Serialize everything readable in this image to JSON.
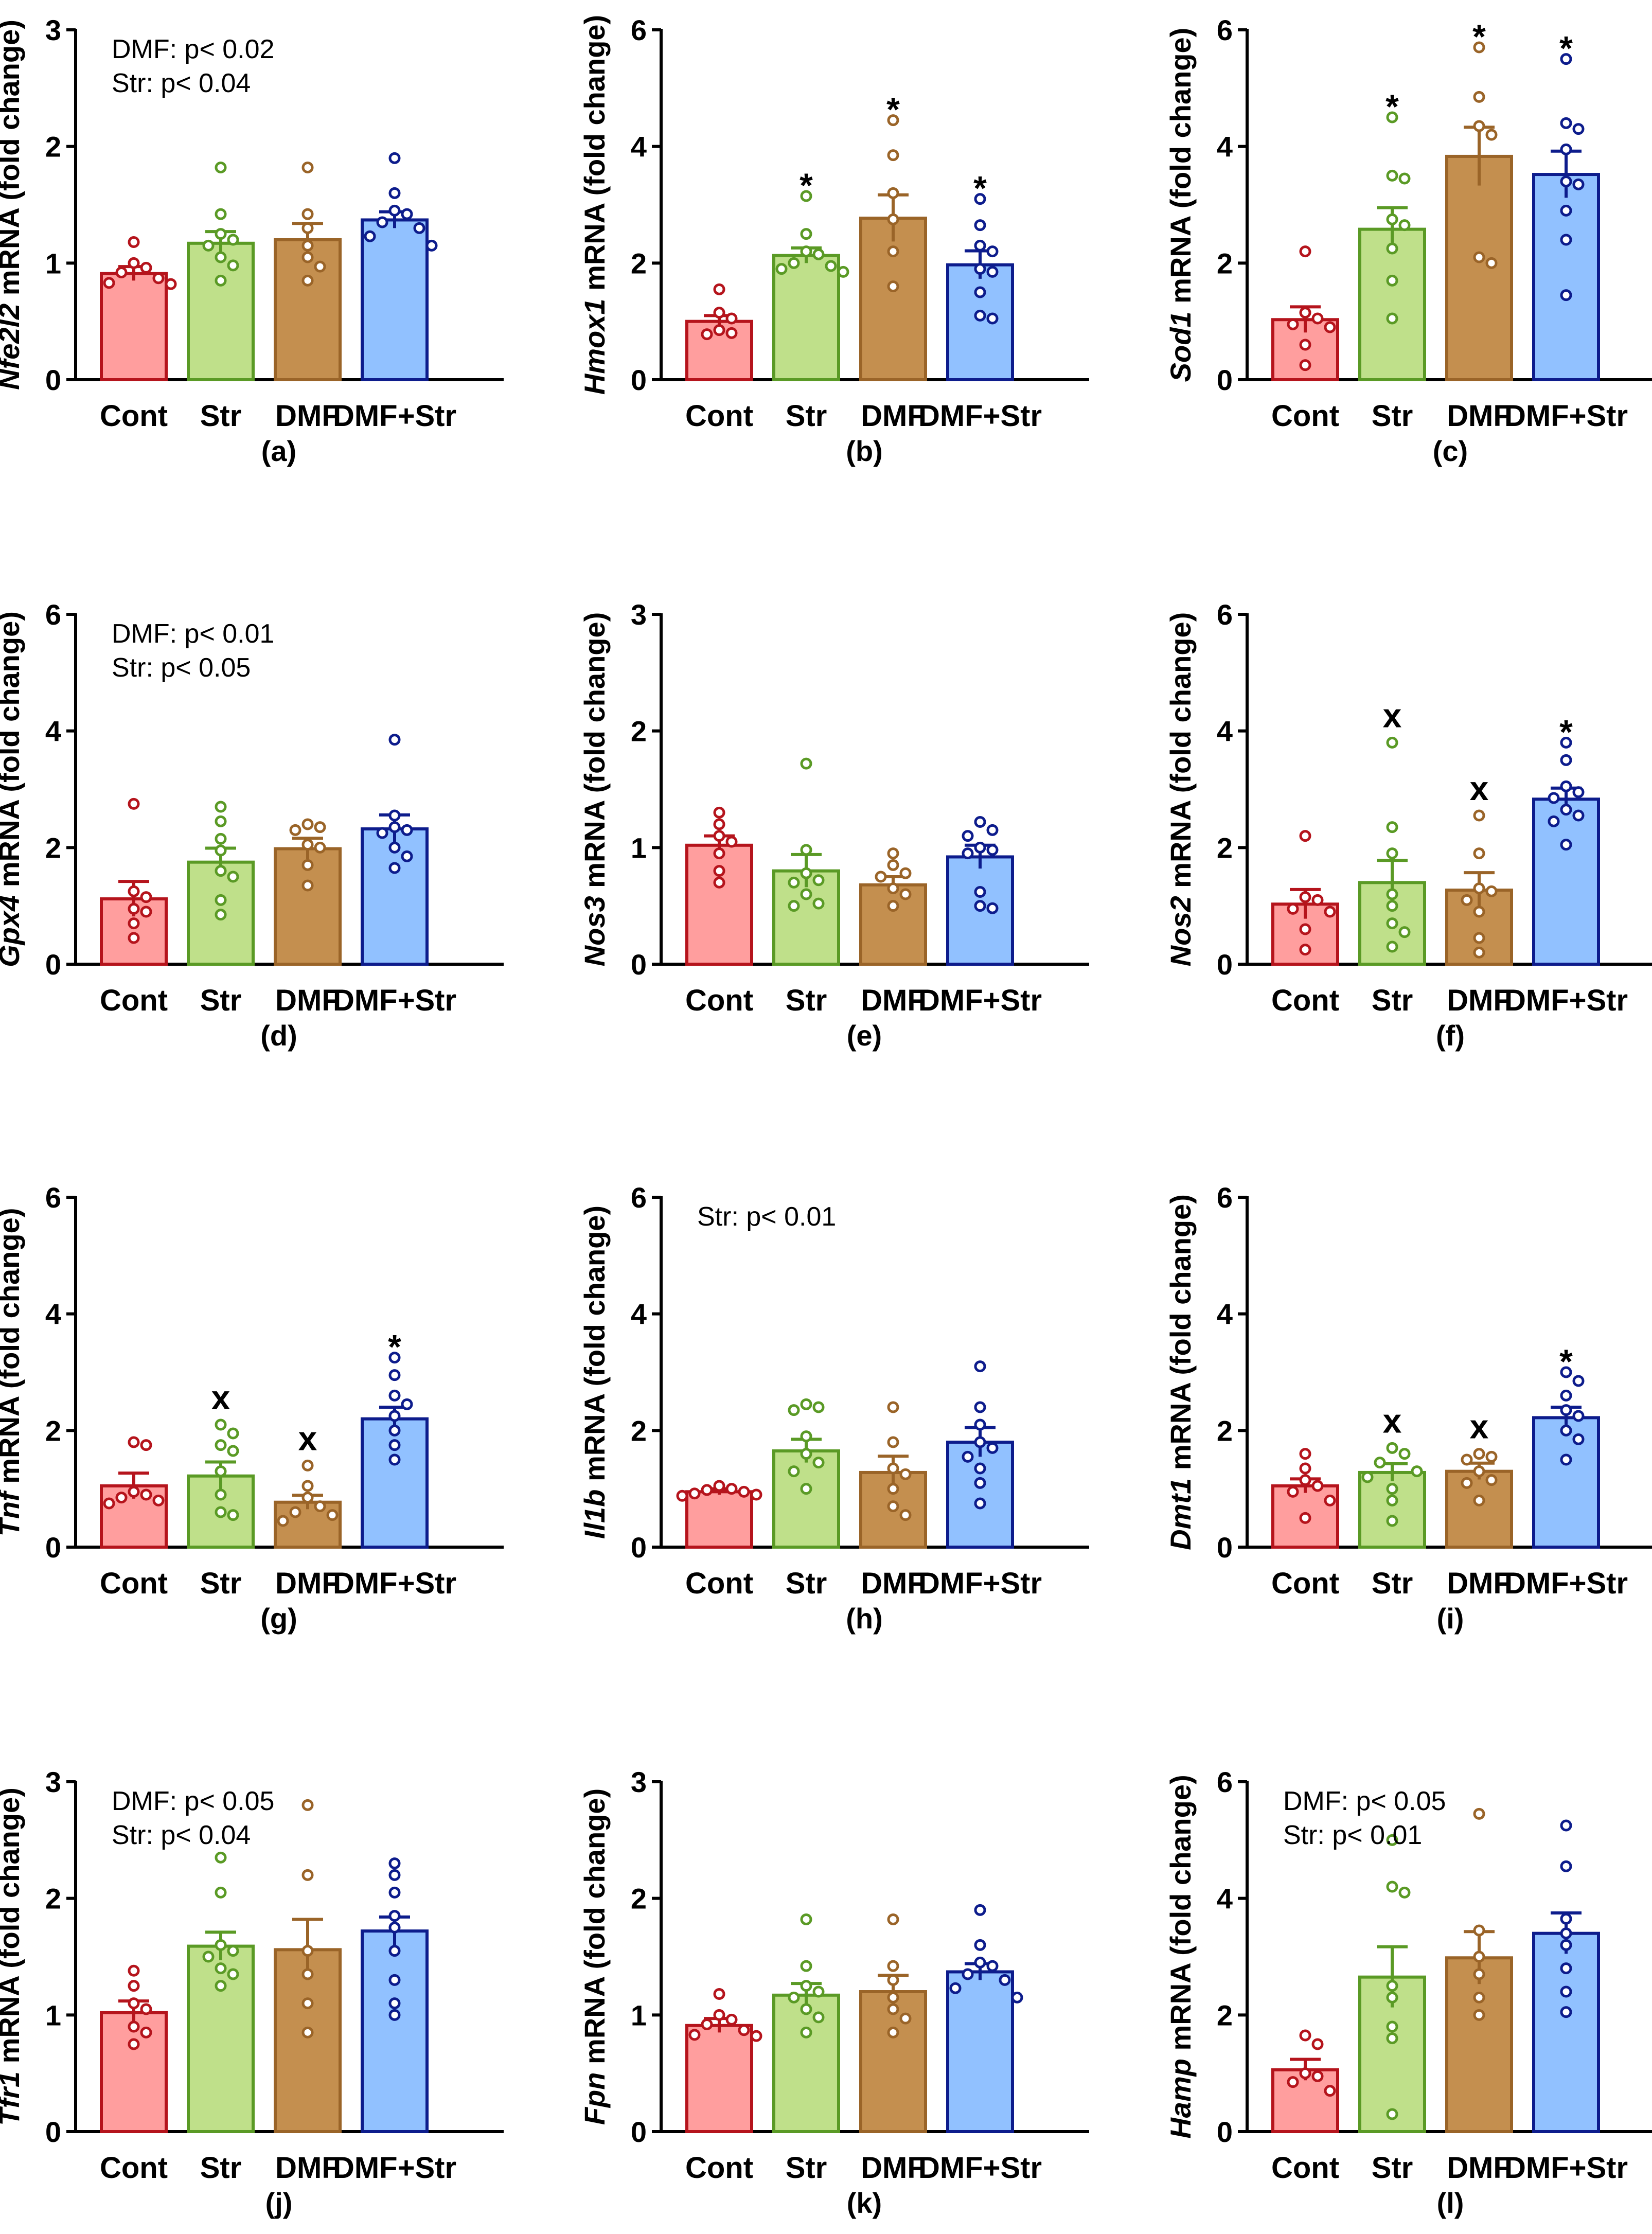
{
  "figure": {
    "categories": [
      "Cont",
      "Str",
      "DMF",
      "DMF+Str"
    ],
    "colors": {
      "fill": [
        "#ff9e9e",
        "#bfe08a",
        "#c48f4f",
        "#91c1ff"
      ],
      "edge": [
        "#b5141c",
        "#5a9a25",
        "#9a6428",
        "#0d1c8c"
      ]
    },
    "ylabel_suffix": " mRNA (fold change)"
  },
  "chart_data": [
    {
      "type": "bar",
      "panel": "(a)",
      "gene": "Nfe2l2",
      "ylim": [
        0,
        3
      ],
      "yticks": [
        0,
        1,
        2,
        3
      ],
      "categories": [
        "Cont",
        "Str",
        "DMF",
        "DMF+Str"
      ],
      "values": [
        0.91,
        1.17,
        1.2,
        1.37
      ],
      "sem": [
        0.06,
        0.1,
        0.14,
        0.07
      ],
      "points": [
        [
          1.18,
          1.0,
          0.96,
          0.92,
          0.87,
          0.83,
          0.82
        ],
        [
          1.82,
          1.42,
          1.25,
          1.2,
          1.15,
          1.05,
          0.98,
          0.85
        ],
        [
          1.82,
          1.42,
          1.3,
          1.15,
          1.05,
          0.97,
          0.85
        ],
        [
          1.9,
          1.6,
          1.45,
          1.42,
          1.35,
          1.3,
          1.23,
          1.15
        ]
      ],
      "sig": [
        "",
        "",
        "",
        ""
      ],
      "notes": [
        "DMF: p< 0.02",
        "Str: p< 0.04"
      ]
    },
    {
      "type": "bar",
      "panel": "(b)",
      "gene": "Hmox1",
      "ylim": [
        0,
        6
      ],
      "yticks": [
        0,
        2,
        4,
        6
      ],
      "categories": [
        "Cont",
        "Str",
        "DMF",
        "DMF+Str"
      ],
      "values": [
        1.0,
        2.13,
        2.77,
        1.97
      ],
      "sem": [
        0.1,
        0.13,
        0.4,
        0.24
      ],
      "points": [
        [
          1.55,
          1.15,
          1.05,
          0.85,
          0.8,
          0.78
        ],
        [
          3.15,
          2.5,
          2.2,
          2.15,
          2.0,
          1.95,
          1.9,
          1.85
        ],
        [
          4.45,
          3.85,
          3.2,
          2.75,
          2.2,
          1.6
        ],
        [
          3.1,
          2.65,
          2.3,
          2.2,
          1.9,
          1.85,
          1.5,
          1.1,
          1.05
        ]
      ],
      "sig": [
        "",
        "*",
        "*",
        "*"
      ],
      "notes": []
    },
    {
      "type": "bar",
      "panel": "(c)",
      "gene": "Sod1",
      "ylim": [
        0,
        6
      ],
      "yticks": [
        0,
        2,
        4,
        6
      ],
      "categories": [
        "Cont",
        "Str",
        "DMF",
        "DMF+Str"
      ],
      "values": [
        1.03,
        2.58,
        3.83,
        3.52
      ],
      "sem": [
        0.22,
        0.37,
        0.5,
        0.4
      ],
      "points": [
        [
          2.2,
          1.15,
          1.05,
          0.95,
          0.9,
          0.6,
          0.25
        ],
        [
          4.5,
          3.5,
          3.45,
          2.75,
          2.65,
          2.25,
          1.7,
          1.05
        ],
        [
          5.7,
          4.85,
          4.35,
          4.2,
          2.1,
          2.0
        ],
        [
          5.5,
          4.4,
          4.3,
          3.95,
          3.4,
          3.35,
          2.9,
          2.4,
          1.45
        ]
      ],
      "sig": [
        "",
        "*",
        "*",
        "*"
      ],
      "notes": []
    },
    {
      "type": "bar",
      "panel": "(d)",
      "gene": "Gpx4",
      "ylim": [
        0,
        6
      ],
      "yticks": [
        0,
        2,
        4,
        6
      ],
      "categories": [
        "Cont",
        "Str",
        "DMF",
        "DMF+Str"
      ],
      "values": [
        1.12,
        1.75,
        1.98,
        2.32
      ],
      "sem": [
        0.3,
        0.24,
        0.18,
        0.24
      ],
      "points": [
        [
          2.75,
          1.25,
          1.15,
          0.95,
          0.9,
          0.7,
          0.45
        ],
        [
          2.7,
          2.45,
          2.15,
          1.95,
          1.6,
          1.5,
          1.1,
          0.85
        ],
        [
          2.4,
          2.35,
          2.3,
          2.05,
          2.0,
          1.7,
          1.35
        ],
        [
          3.85,
          2.55,
          2.35,
          2.3,
          2.25,
          2.0,
          1.85,
          1.65
        ]
      ],
      "sig": [
        "",
        "",
        "",
        ""
      ],
      "notes": [
        "DMF: p< 0.01",
        "Str: p< 0.05"
      ]
    },
    {
      "type": "bar",
      "panel": "(e)",
      "gene": "Nos3",
      "ylim": [
        0,
        3
      ],
      "yticks": [
        0,
        1,
        2,
        3
      ],
      "categories": [
        "Cont",
        "Str",
        "DMF",
        "DMF+Str"
      ],
      "values": [
        1.02,
        0.8,
        0.68,
        0.92
      ],
      "sem": [
        0.08,
        0.14,
        0.07,
        0.1
      ],
      "points": [
        [
          1.3,
          1.2,
          1.1,
          1.05,
          0.95,
          0.8,
          0.7
        ],
        [
          1.72,
          0.98,
          0.78,
          0.72,
          0.7,
          0.6,
          0.52,
          0.5
        ],
        [
          0.95,
          0.85,
          0.78,
          0.75,
          0.65,
          0.6,
          0.5
        ],
        [
          1.22,
          1.15,
          1.1,
          1.0,
          0.98,
          0.95,
          0.62,
          0.5,
          0.48
        ]
      ],
      "sig": [
        "",
        "",
        "",
        ""
      ],
      "notes": []
    },
    {
      "type": "bar",
      "panel": "(f)",
      "gene": "Nos2",
      "ylim": [
        0,
        6
      ],
      "yticks": [
        0,
        2,
        4,
        6
      ],
      "categories": [
        "Cont",
        "Str",
        "DMF",
        "DMF+Str"
      ],
      "values": [
        1.03,
        1.4,
        1.27,
        2.83
      ],
      "sem": [
        0.25,
        0.38,
        0.3,
        0.19
      ],
      "points": [
        [
          2.2,
          1.15,
          1.1,
          0.95,
          0.9,
          0.6,
          0.25
        ],
        [
          3.8,
          2.35,
          1.9,
          1.2,
          1.0,
          0.7,
          0.55,
          0.3
        ],
        [
          2.55,
          1.9,
          1.3,
          1.25,
          1.1,
          0.9,
          0.45,
          0.2
        ],
        [
          3.8,
          3.5,
          3.05,
          2.95,
          2.85,
          2.65,
          2.55,
          2.45,
          2.05
        ]
      ],
      "sig": [
        "",
        "x",
        "x",
        "*"
      ],
      "notes": []
    },
    {
      "type": "bar",
      "panel": "(g)",
      "gene": "Tnf",
      "ylim": [
        0,
        6
      ],
      "yticks": [
        0,
        2,
        4,
        6
      ],
      "categories": [
        "Cont",
        "Str",
        "DMF",
        "DMF+Str"
      ],
      "values": [
        1.05,
        1.22,
        0.77,
        2.2
      ],
      "sem": [
        0.22,
        0.24,
        0.12,
        0.2
      ],
      "points": [
        [
          1.8,
          1.75,
          0.95,
          0.9,
          0.85,
          0.8,
          0.75
        ],
        [
          2.1,
          1.95,
          1.75,
          1.65,
          1.3,
          0.9,
          0.6,
          0.55
        ],
        [
          1.4,
          1.05,
          0.85,
          0.7,
          0.6,
          0.55,
          0.45
        ],
        [
          3.25,
          2.95,
          2.6,
          2.45,
          2.25,
          2.0,
          1.75,
          1.5
        ]
      ],
      "sig": [
        "",
        "x",
        "x",
        "*"
      ],
      "notes": []
    },
    {
      "type": "bar",
      "panel": "(h)",
      "gene": "Il1b",
      "ylim": [
        0,
        6
      ],
      "yticks": [
        0,
        2,
        4,
        6
      ],
      "categories": [
        "Cont",
        "Str",
        "DMF",
        "DMF+Str"
      ],
      "values": [
        0.95,
        1.65,
        1.28,
        1.8
      ],
      "sem": [
        0.05,
        0.2,
        0.28,
        0.25
      ],
      "points": [
        [
          1.05,
          1.0,
          0.98,
          0.95,
          0.92,
          0.9,
          0.88
        ],
        [
          2.45,
          2.4,
          2.35,
          1.9,
          1.6,
          1.45,
          1.3,
          1.0
        ],
        [
          2.4,
          1.8,
          1.35,
          1.25,
          1.0,
          0.7,
          0.55
        ],
        [
          3.1,
          2.4,
          2.1,
          1.8,
          1.7,
          1.55,
          1.35,
          1.1,
          0.75
        ]
      ],
      "sig": [
        "",
        "",
        "",
        ""
      ],
      "notes": [
        "Str: p< 0.01"
      ]
    },
    {
      "type": "bar",
      "panel": "(i)",
      "gene": "Dmt1",
      "ylim": [
        0,
        6
      ],
      "yticks": [
        0,
        2,
        4,
        6
      ],
      "categories": [
        "Cont",
        "Str",
        "DMF",
        "DMF+Str"
      ],
      "values": [
        1.05,
        1.28,
        1.3,
        2.22
      ],
      "sem": [
        0.12,
        0.15,
        0.14,
        0.18
      ],
      "points": [
        [
          1.6,
          1.35,
          1.15,
          1.05,
          0.95,
          0.8,
          0.5
        ],
        [
          1.7,
          1.6,
          1.45,
          1.3,
          1.2,
          1.0,
          0.8,
          0.45
        ],
        [
          1.6,
          1.55,
          1.5,
          1.3,
          1.15,
          1.1,
          0.8
        ],
        [
          3.0,
          2.85,
          2.6,
          2.35,
          2.25,
          2.0,
          1.85,
          1.5
        ]
      ],
      "sig": [
        "",
        "x",
        "x",
        "*"
      ],
      "notes": []
    },
    {
      "type": "bar",
      "panel": "(j)",
      "gene": "Tfr1",
      "ylim": [
        0,
        3
      ],
      "yticks": [
        0,
        1,
        2,
        3
      ],
      "categories": [
        "Cont",
        "Str",
        "DMF",
        "DMF+Str"
      ],
      "values": [
        1.02,
        1.59,
        1.56,
        1.72
      ],
      "sem": [
        0.1,
        0.12,
        0.26,
        0.12
      ],
      "points": [
        [
          1.38,
          1.25,
          1.1,
          1.05,
          0.9,
          0.85,
          0.75
        ],
        [
          2.35,
          2.05,
          1.6,
          1.55,
          1.5,
          1.4,
          1.35,
          1.25
        ],
        [
          2.8,
          2.2,
          1.55,
          1.35,
          1.1,
          0.85
        ],
        [
          2.3,
          2.2,
          2.05,
          1.85,
          1.75,
          1.55,
          1.3,
          1.1,
          1.0
        ]
      ],
      "sig": [
        "",
        "",
        "",
        ""
      ],
      "notes": [
        "DMF: p< 0.05",
        "Str: p< 0.04"
      ]
    },
    {
      "type": "bar",
      "panel": "(k)",
      "gene": "Fpn",
      "ylim": [
        0,
        3
      ],
      "yticks": [
        0,
        1,
        2,
        3
      ],
      "categories": [
        "Cont",
        "Str",
        "DMF",
        "DMF+Str"
      ],
      "values": [
        0.91,
        1.17,
        1.2,
        1.37
      ],
      "sem": [
        0.06,
        0.1,
        0.14,
        0.07
      ],
      "points": [
        [
          1.18,
          1.0,
          0.96,
          0.92,
          0.87,
          0.83,
          0.82
        ],
        [
          1.82,
          1.42,
          1.25,
          1.2,
          1.15,
          1.05,
          0.98,
          0.85
        ],
        [
          1.82,
          1.42,
          1.3,
          1.15,
          1.05,
          0.97,
          0.85
        ],
        [
          1.9,
          1.6,
          1.45,
          1.42,
          1.35,
          1.3,
          1.23,
          1.15
        ]
      ],
      "sig": [
        "",
        "",
        "",
        ""
      ],
      "notes": []
    },
    {
      "type": "bar",
      "panel": "(l)",
      "gene": "Hamp",
      "ylim": [
        0,
        6
      ],
      "yticks": [
        0,
        2,
        4,
        6
      ],
      "categories": [
        "Cont",
        "Str",
        "DMF",
        "DMF+Str"
      ],
      "values": [
        1.06,
        2.65,
        2.98,
        3.4
      ],
      "sem": [
        0.18,
        0.52,
        0.45,
        0.35
      ],
      "points": [
        [
          1.65,
          1.5,
          1.0,
          0.95,
          0.85,
          0.7
        ],
        [
          5.0,
          4.2,
          4.1,
          2.5,
          2.3,
          1.8,
          1.6,
          0.3
        ],
        [
          5.45,
          3.45,
          3.0,
          2.7,
          2.3,
          2.0
        ],
        [
          5.25,
          4.55,
          3.65,
          3.4,
          3.2,
          2.8,
          2.4,
          2.05
        ]
      ],
      "sig": [
        "",
        "",
        "",
        ""
      ],
      "notes": [
        "DMF: p< 0.05",
        "Str: p< 0.01"
      ]
    }
  ]
}
